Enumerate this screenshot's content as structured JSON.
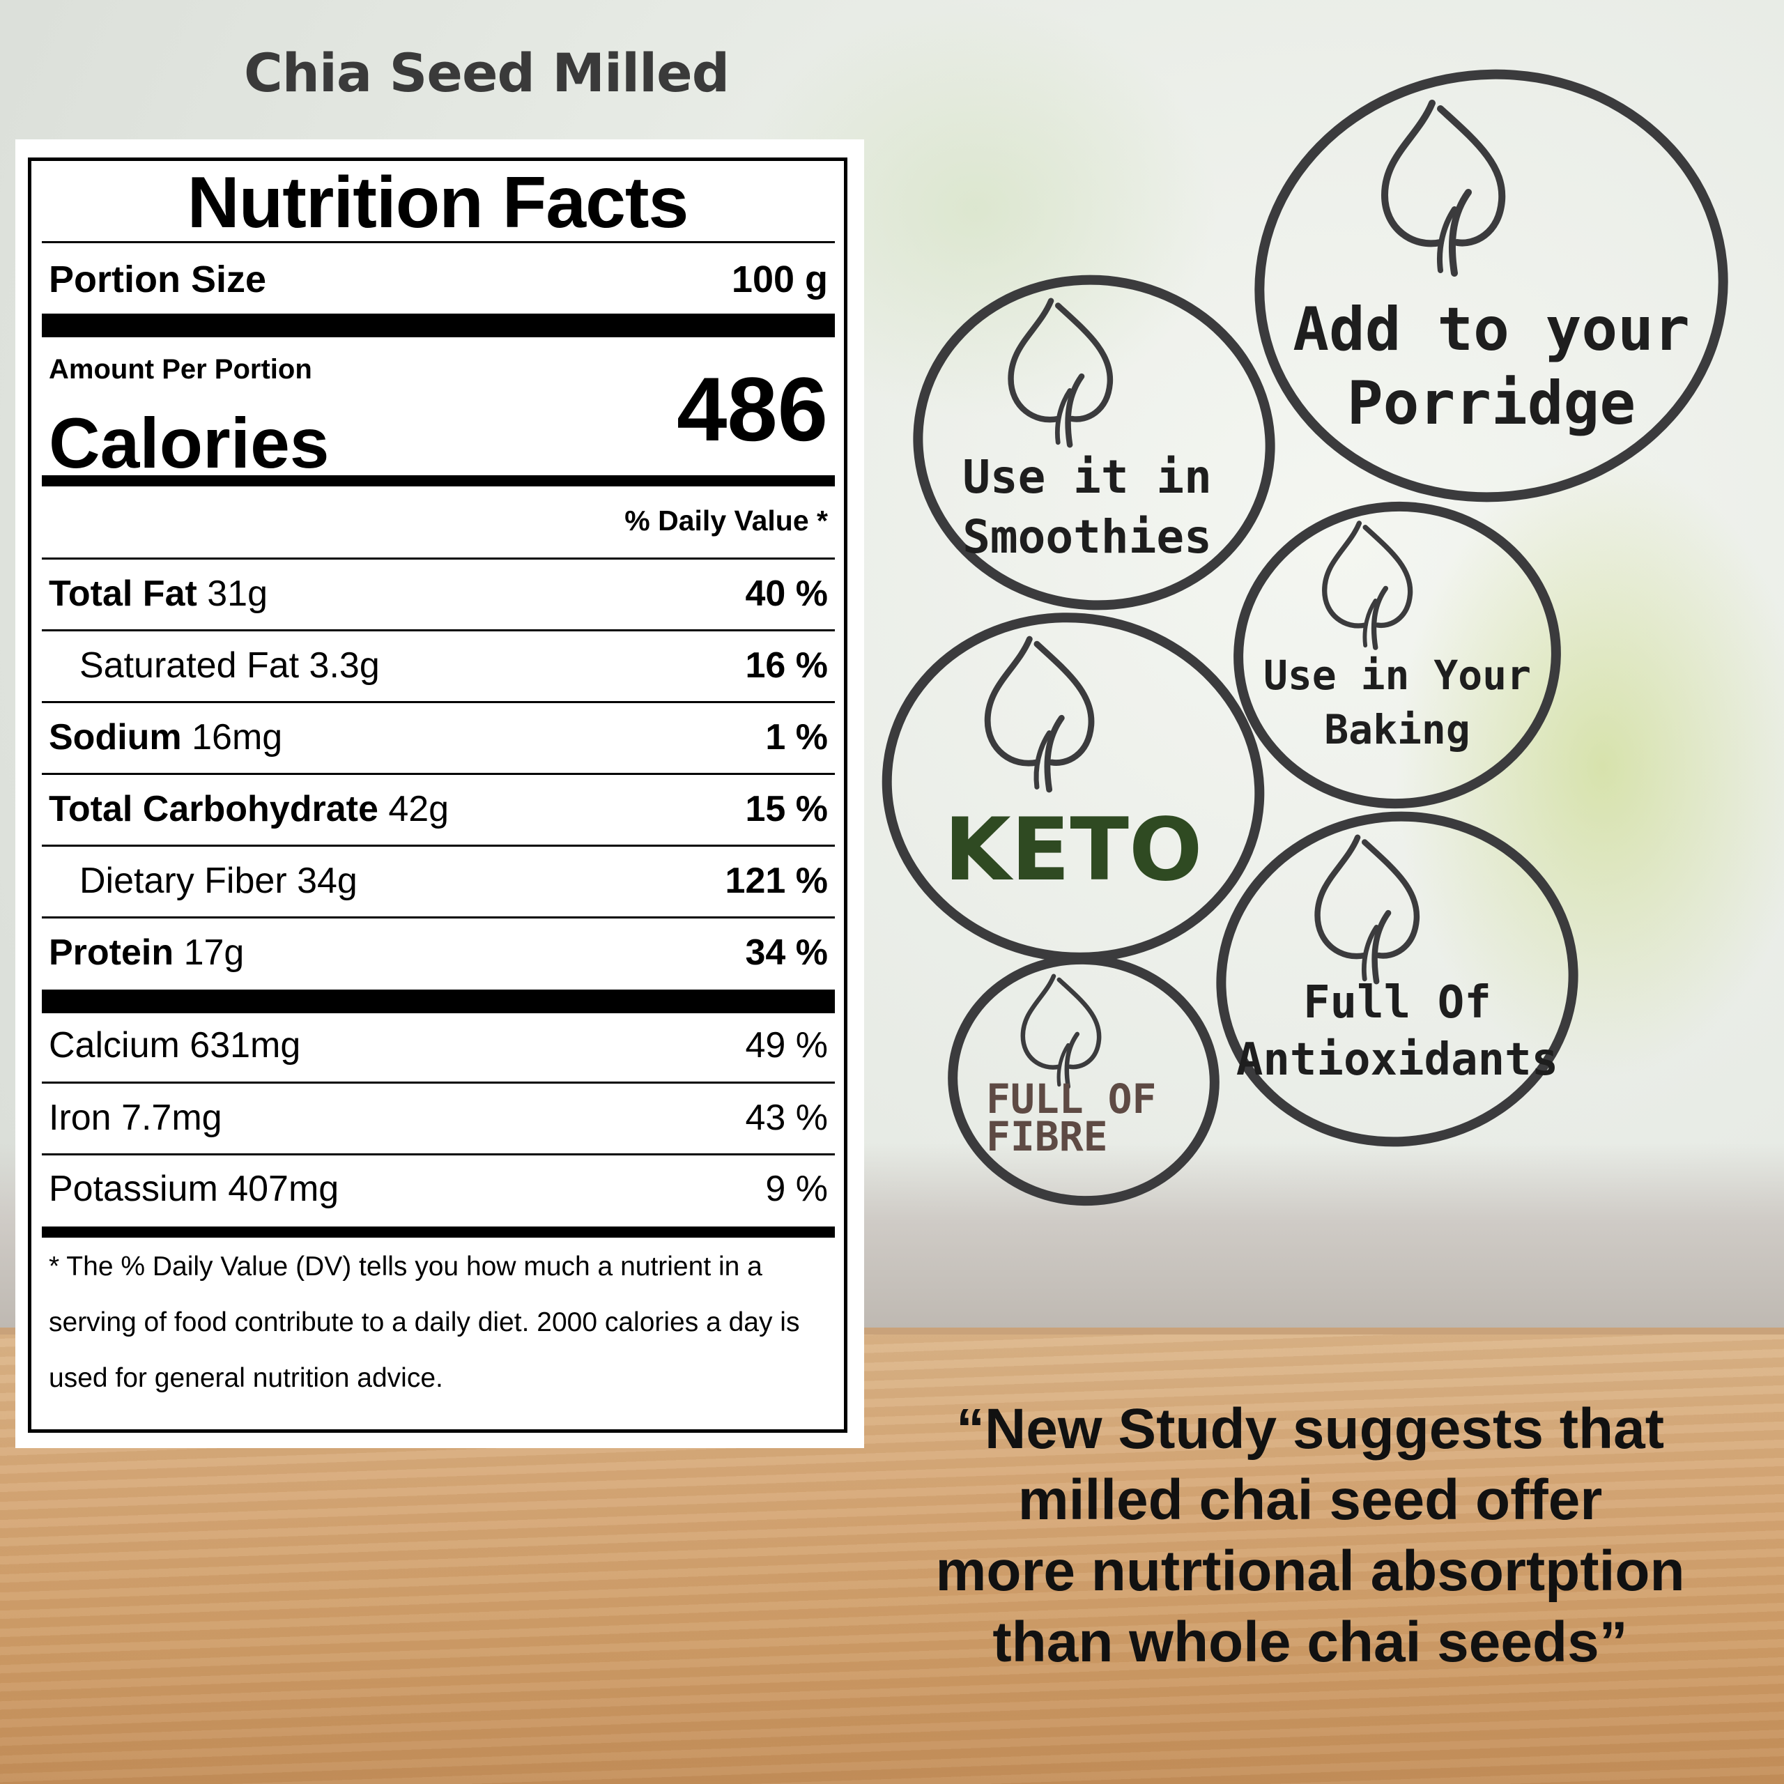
{
  "product_title": "Chia Seed Milled",
  "label": {
    "title": "Nutrition Facts",
    "portion_size_label": "Portion Size",
    "portion_size_value": "100 g",
    "amount_per_portion": "Amount Per Portion",
    "calories_label": "Calories",
    "calories_value": "486",
    "daily_value_header": "% Daily Value *",
    "nutrients": [
      {
        "name": "Total Fat",
        "amount": "31g",
        "dv": "40 %"
      },
      {
        "name": "Saturated Fat",
        "amount": "3.3g",
        "dv": "16 %"
      },
      {
        "name": "Sodium",
        "amount": "16mg",
        "dv": "1 %"
      },
      {
        "name": "Total Carbohydrate",
        "amount": "42g",
        "dv": "15 %"
      },
      {
        "name": "Dietary Fiber",
        "amount": "34g",
        "dv": "121 %"
      },
      {
        "name": "Protein",
        "amount": "17g",
        "dv": "34 %"
      }
    ],
    "minerals": [
      {
        "name": "Calcium",
        "amount": "631mg",
        "dv": "49 %"
      },
      {
        "name": "Iron",
        "amount": "7.7mg",
        "dv": "43 %"
      },
      {
        "name": "Potassium",
        "amount": "407mg",
        "dv": "9 %"
      }
    ],
    "footnote": "* The % Daily Value (DV) tells you how much a nutrient in a serving of food contribute to a daily diet. 2000 calories a day is used for general nutrition advice."
  },
  "badges": {
    "porridge_line1": "Add to your",
    "porridge_line2": "Porridge",
    "smoothies_line1": "Use it in",
    "smoothies_line2": "Smoothies",
    "baking_line1": "Use in Your",
    "baking_line2": "Baking",
    "keto": "KETO",
    "antioxidants_line1": "Full Of",
    "antioxidants_line2": "Antioxidants",
    "fibre_line1": "FULL OF",
    "fibre_line2": "FIBRE",
    "keto_color": "#2f4a22",
    "fibre_color": "#5e4a44",
    "icon": "leaf-icon"
  },
  "quote": {
    "line1": "“New Study suggests that",
    "line2": "milled chai seed offer",
    "line3": "more nutrtional absortption",
    "line4": "than whole chai seeds”"
  }
}
